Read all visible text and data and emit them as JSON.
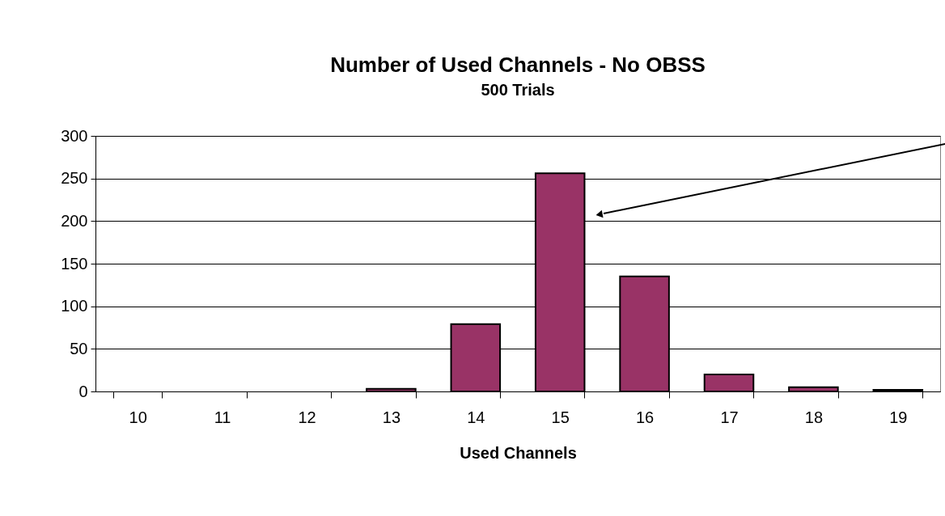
{
  "chart_data": {
    "type": "bar",
    "title": "Number of Used Channels - No OBSS",
    "subtitle": "500 Trials",
    "xlabel": "Used Channels",
    "categories": [
      "10",
      "11",
      "12",
      "13",
      "14",
      "15",
      "16",
      "17",
      "18",
      "19"
    ],
    "values": [
      0,
      0,
      0,
      3,
      79,
      256,
      135,
      20,
      5,
      2
    ],
    "color": "#993366",
    "ylim": [
      0,
      300
    ],
    "yticks": [
      0,
      50,
      100,
      150,
      200,
      250,
      300
    ],
    "grid": "y"
  }
}
